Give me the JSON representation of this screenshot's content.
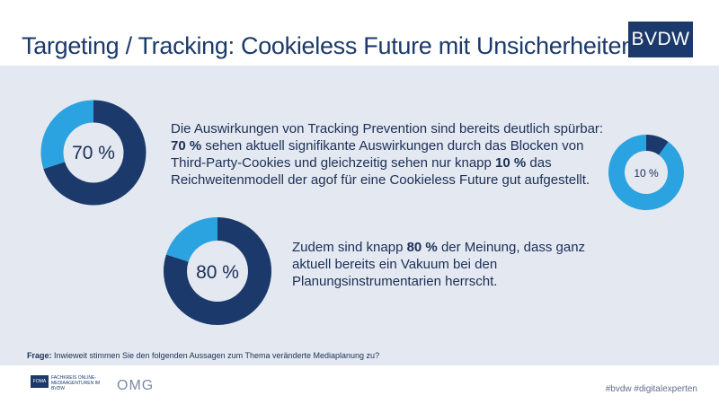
{
  "header": {
    "title": "Targeting / Tracking: Cookieless Future mit Unsicherheiten",
    "logo": "BVDW"
  },
  "colors": {
    "dark": "#1b3a6b",
    "light": "#2aa3e0",
    "panel": "#e3e8f1"
  },
  "chart_data": [
    {
      "type": "pie",
      "label": "70 %",
      "values": [
        70,
        30
      ]
    },
    {
      "type": "pie",
      "label": "10 %",
      "values": [
        10,
        90
      ]
    },
    {
      "type": "pie",
      "label": "80 %",
      "values": [
        80,
        20
      ]
    }
  ],
  "statements": {
    "first": {
      "intro": "Die Auswirkungen von Tracking Prevention sind bereits deutlich spürbar:",
      "pct_a": "70 %",
      "mid": " sehen aktuell signifikante Auswirkungen durch das Blocken von Third-Party-Cookies und gleichzeitig sehen nur knapp ",
      "pct_b": "10 %",
      "end": " das Reichweitenmodell der agof für eine Cookieless Future gut aufgestellt."
    },
    "second": {
      "intro": "Zudem sind knapp ",
      "pct": "80 %",
      "end": " der Meinung, dass ganz aktuell bereits ein Vakuum bei den Planungsinstrumentarien herrscht."
    }
  },
  "question": {
    "label": "Frage:",
    "text": " Inwieweit stimmen Sie den folgenden Aussagen zum Thema veränderte Mediaplanung zu?"
  },
  "footer": {
    "fachkreis_badge": "FOMA",
    "fachkreis_text": "FACHKREIS ONLINE-MEDIAAGENTUREN IM BVDW",
    "omg": "OMG",
    "hashtags": "#bvdw #digitalexperten"
  }
}
